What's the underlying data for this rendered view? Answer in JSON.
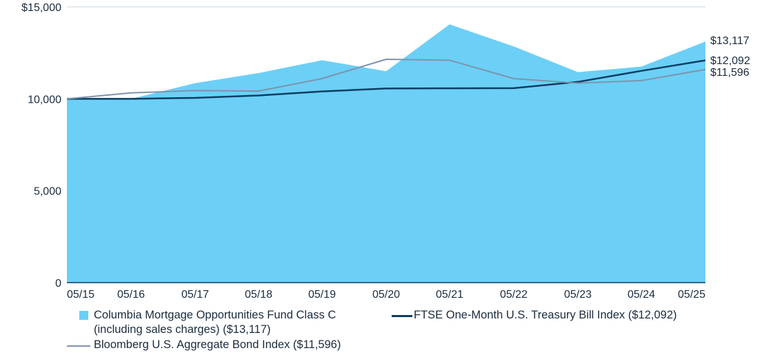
{
  "chart_data": {
    "type": "area",
    "x": [
      "05/15",
      "05/16",
      "05/17",
      "05/18",
      "05/19",
      "05/20",
      "05/21",
      "05/22",
      "05/23",
      "05/24",
      "05/25"
    ],
    "ylim": [
      0,
      15000
    ],
    "yticks": [
      {
        "value": 15000,
        "label": "$15,000"
      },
      {
        "value": 10000,
        "label": "10,000"
      },
      {
        "value": 5000,
        "label": "5,000"
      },
      {
        "value": 0,
        "label": "0"
      }
    ],
    "grid": "horizontal",
    "legend_position": "bottom",
    "series": [
      {
        "name": "Columbia Mortgage Opportunities Fund Class C (including sales charges) ($13,117)",
        "legend_lines": [
          "Columbia Mortgage Opportunities Fund Class C",
          "(including sales charges) ($13,117)"
        ],
        "type": "area",
        "color": "#6ccff6",
        "end_label": "$13,117",
        "values": [
          10000,
          10000,
          10850,
          11400,
          12100,
          11500,
          14050,
          12850,
          11450,
          11750,
          13117
        ]
      },
      {
        "name": "FTSE One-Month U.S. Treasury Bill Index ($12,092)",
        "legend_lines": [
          "FTSE One-Month U.S. Treasury Bill Index ($12,092)"
        ],
        "type": "line",
        "color": "#0a3d62",
        "end_label": "$12,092",
        "values": [
          10000,
          10000,
          10050,
          10180,
          10400,
          10560,
          10570,
          10580,
          10920,
          11520,
          12092
        ]
      },
      {
        "name": "Bloomberg U.S. Aggregate Bond Index ($11,596)",
        "legend_lines": [
          "Bloomberg U.S. Aggregate Bond Index ($11,596)"
        ],
        "type": "line",
        "color": "#7e93ab",
        "end_label": "$11,596",
        "values": [
          10000,
          10320,
          10450,
          10420,
          11100,
          12150,
          12100,
          11100,
          10850,
          10990,
          11596
        ]
      }
    ]
  }
}
